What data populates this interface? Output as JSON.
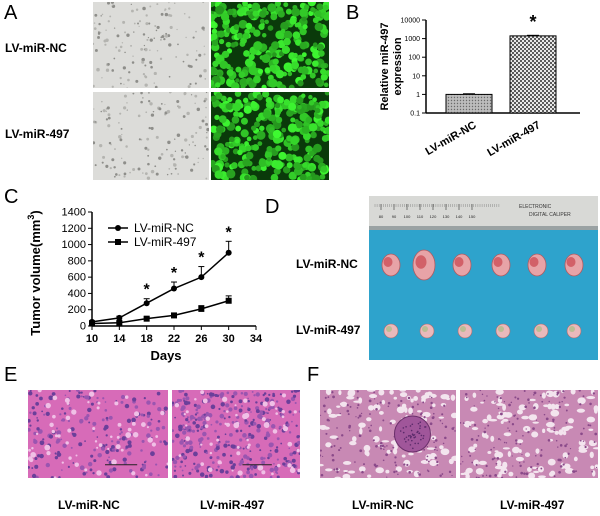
{
  "panels": {
    "A": {
      "label": "A",
      "rows": [
        "LV-miR-NC",
        "LV-miR-497"
      ]
    },
    "B": {
      "label": "B",
      "sig": "*"
    },
    "C": {
      "label": "C",
      "sig": "*"
    },
    "D": {
      "label": "D",
      "rows": [
        "LV-miR-NC",
        "LV-miR-497"
      ],
      "ruler_numbers": [
        "80",
        "90",
        "100",
        "110",
        "120",
        "130",
        "140",
        "150"
      ],
      "ruler_text": [
        "ELECTRONIC",
        "DIGITAL CALIPER"
      ]
    },
    "E": {
      "label": "E",
      "captions": [
        "LV-miR-NC",
        "LV-miR-497"
      ]
    },
    "F": {
      "label": "F",
      "captions": [
        "LV-miR-NC",
        "LV-miR-497"
      ]
    }
  },
  "chart_data": [
    {
      "type": "bar",
      "panel": "B",
      "categories": [
        "LV-miR-NC",
        "LV-miR-497"
      ],
      "values": [
        1,
        1400
      ],
      "errors": [
        0.08,
        100
      ],
      "ylabel_lines": [
        "Relative miR-497",
        "expression"
      ],
      "yscale": "log",
      "ylim": [
        0.1,
        10000
      ],
      "yticks": [
        "0.1",
        "1",
        "10",
        "100",
        "1000",
        "10000"
      ],
      "significance": "*",
      "colors": [
        "#9a9a9a",
        "#777777"
      ]
    },
    {
      "type": "line",
      "panel": "C",
      "ylabel": "Tumor volume(mm",
      "ylabel_sup": "3",
      "ylabel_close": ")",
      "xlabel": "Days",
      "xlim": [
        10,
        34
      ],
      "ylim": [
        0,
        1400
      ],
      "xticks": [
        10,
        14,
        18,
        22,
        26,
        30,
        34
      ],
      "yticks": [
        0,
        200,
        400,
        600,
        800,
        1000,
        1200,
        1400
      ],
      "x": [
        10,
        14,
        18,
        22,
        26,
        30
      ],
      "series": [
        {
          "name": "LV-miR-NC",
          "marker": "circle",
          "values": [
            50,
            100,
            280,
            460,
            600,
            900
          ],
          "errors": [
            15,
            20,
            55,
            80,
            130,
            140
          ]
        },
        {
          "name": "LV-miR-497",
          "marker": "square",
          "values": [
            30,
            40,
            90,
            130,
            210,
            310
          ],
          "errors": [
            10,
            12,
            20,
            25,
            40,
            60
          ]
        }
      ],
      "significance_x": [
        18,
        22,
        26,
        30
      ],
      "significance": "*",
      "legend": "top-left"
    }
  ]
}
